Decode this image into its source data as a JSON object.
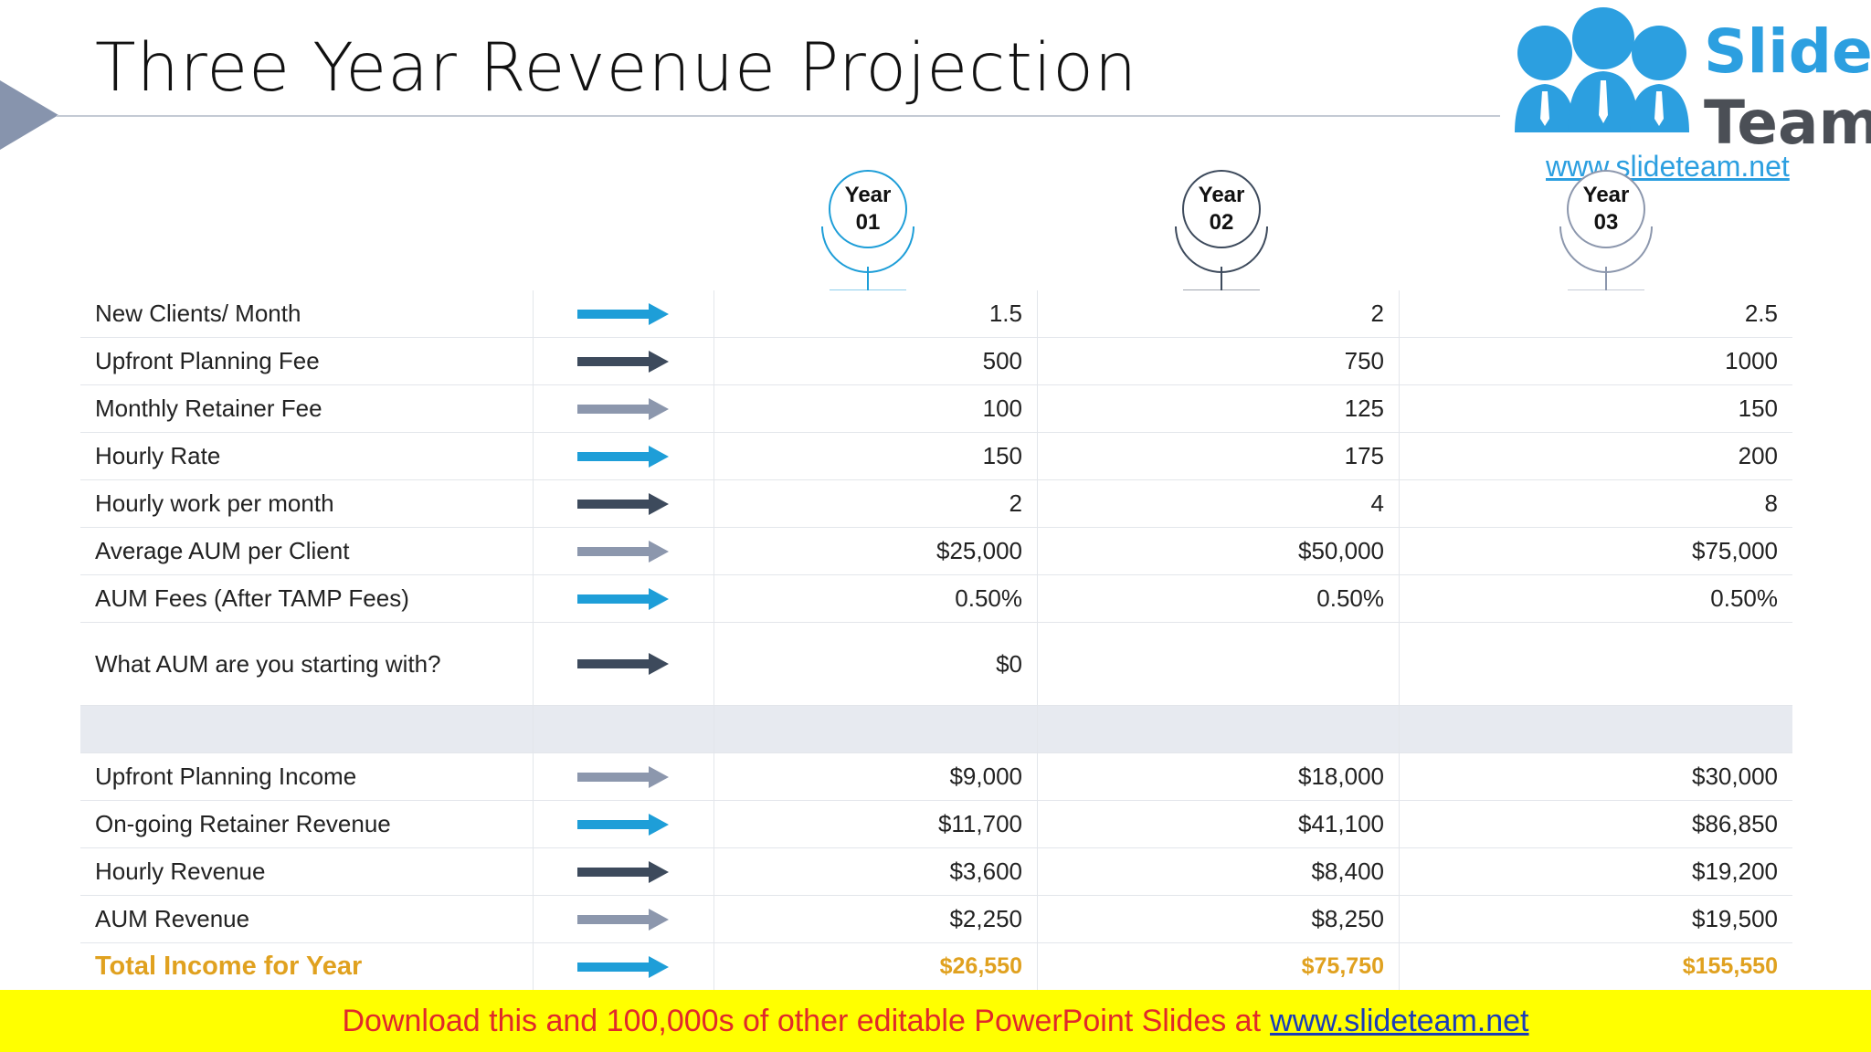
{
  "title": "Three Year Revenue Projection",
  "logo": {
    "word1": "Slide",
    "word2": "Team",
    "url": "www.slideteam.net"
  },
  "years": [
    {
      "line1": "Year",
      "line2": "01",
      "color": "#1e9ed8"
    },
    {
      "line1": "Year",
      "line2": "02",
      "color": "#3d4a5c"
    },
    {
      "line1": "Year",
      "line2": "03",
      "color": "#8c97ad"
    }
  ],
  "arrow_colors": {
    "blue": "#1e9ed8",
    "dark": "#3d4a5c",
    "gray": "#8c97ad"
  },
  "rows": [
    {
      "label": "New Clients/ Month",
      "arrow": "blue",
      "values": [
        "1.5",
        "2",
        "2.5"
      ]
    },
    {
      "label": "Upfront Planning Fee",
      "arrow": "dark",
      "values": [
        "500",
        "750",
        "1000"
      ]
    },
    {
      "label": "Monthly Retainer Fee",
      "arrow": "gray",
      "values": [
        "100",
        "125",
        "150"
      ]
    },
    {
      "label": "Hourly Rate",
      "arrow": "blue",
      "values": [
        "150",
        "175",
        "200"
      ]
    },
    {
      "label": "Hourly work per month",
      "arrow": "dark",
      "values": [
        "2",
        "4",
        "8"
      ]
    },
    {
      "label": "Average AUM per Client",
      "arrow": "gray",
      "values": [
        "$25,000",
        "$50,000",
        "$75,000"
      ]
    },
    {
      "label": "AUM Fees (After TAMP Fees)",
      "arrow": "blue",
      "values": [
        "0.50%",
        "0.50%",
        "0.50%"
      ]
    },
    {
      "label": "What AUM are you starting with?",
      "arrow": "dark",
      "values": [
        "$0",
        "",
        ""
      ]
    },
    {
      "label": "",
      "arrow": "",
      "values": [
        "",
        "",
        ""
      ]
    },
    {
      "label": "Upfront Planning Income",
      "arrow": "gray",
      "values": [
        "$9,000",
        "$18,000",
        "$30,000"
      ]
    },
    {
      "label": "On-going Retainer Revenue",
      "arrow": "blue",
      "values": [
        "$11,700",
        "$41,100",
        "$86,850"
      ]
    },
    {
      "label": "Hourly Revenue",
      "arrow": "dark",
      "values": [
        "$3,600",
        "$8,400",
        "$19,200"
      ]
    },
    {
      "label": "AUM Revenue",
      "arrow": "gray",
      "values": [
        "$2,250",
        "$8,250",
        "$19,500"
      ]
    },
    {
      "label": "Total Income for Year",
      "arrow": "blue",
      "values": [
        "$26,550",
        "$75,750",
        "$155,550"
      ]
    }
  ],
  "banner": {
    "text": "Download this and 100,000s of other editable PowerPoint Slides at",
    "link": "www.slideteam.net"
  }
}
